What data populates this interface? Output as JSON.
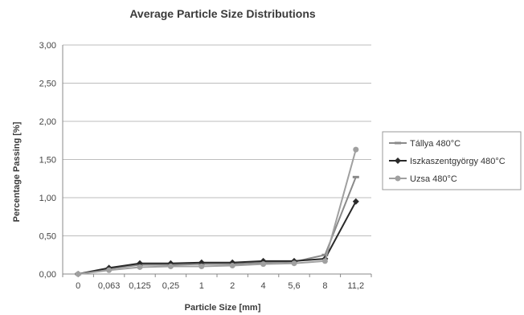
{
  "chart_data": {
    "type": "line",
    "title": "Average Particle Size Distributions",
    "xlabel": "Particle Size [mm]",
    "ylabel": "Percentage Passing [%]",
    "categories": [
      "0",
      "0,063",
      "0,125",
      "0,25",
      "1",
      "2",
      "4",
      "5,6",
      "8",
      "11,2"
    ],
    "ylim": [
      0,
      3
    ],
    "yticks": [
      "0,00",
      "0,50",
      "1,00",
      "1,50",
      "2,00",
      "2,50",
      "3,00"
    ],
    "grid": true,
    "legend_position": "right",
    "series": [
      {
        "name": "Tállya 480°C",
        "color": "#8a8a8a",
        "marker": "dash",
        "values": [
          0.0,
          0.07,
          0.12,
          0.12,
          0.13,
          0.13,
          0.15,
          0.16,
          0.25,
          1.27
        ]
      },
      {
        "name": "Iszkaszentgyörgy 480°C",
        "color": "#2a2a2a",
        "marker": "diamond",
        "values": [
          0.0,
          0.08,
          0.14,
          0.14,
          0.15,
          0.15,
          0.17,
          0.17,
          0.2,
          0.95
        ]
      },
      {
        "name": "Uzsa 480°C",
        "color": "#a0a0a0",
        "marker": "circle",
        "values": [
          0.0,
          0.05,
          0.09,
          0.1,
          0.1,
          0.11,
          0.13,
          0.14,
          0.17,
          1.63
        ]
      }
    ]
  }
}
